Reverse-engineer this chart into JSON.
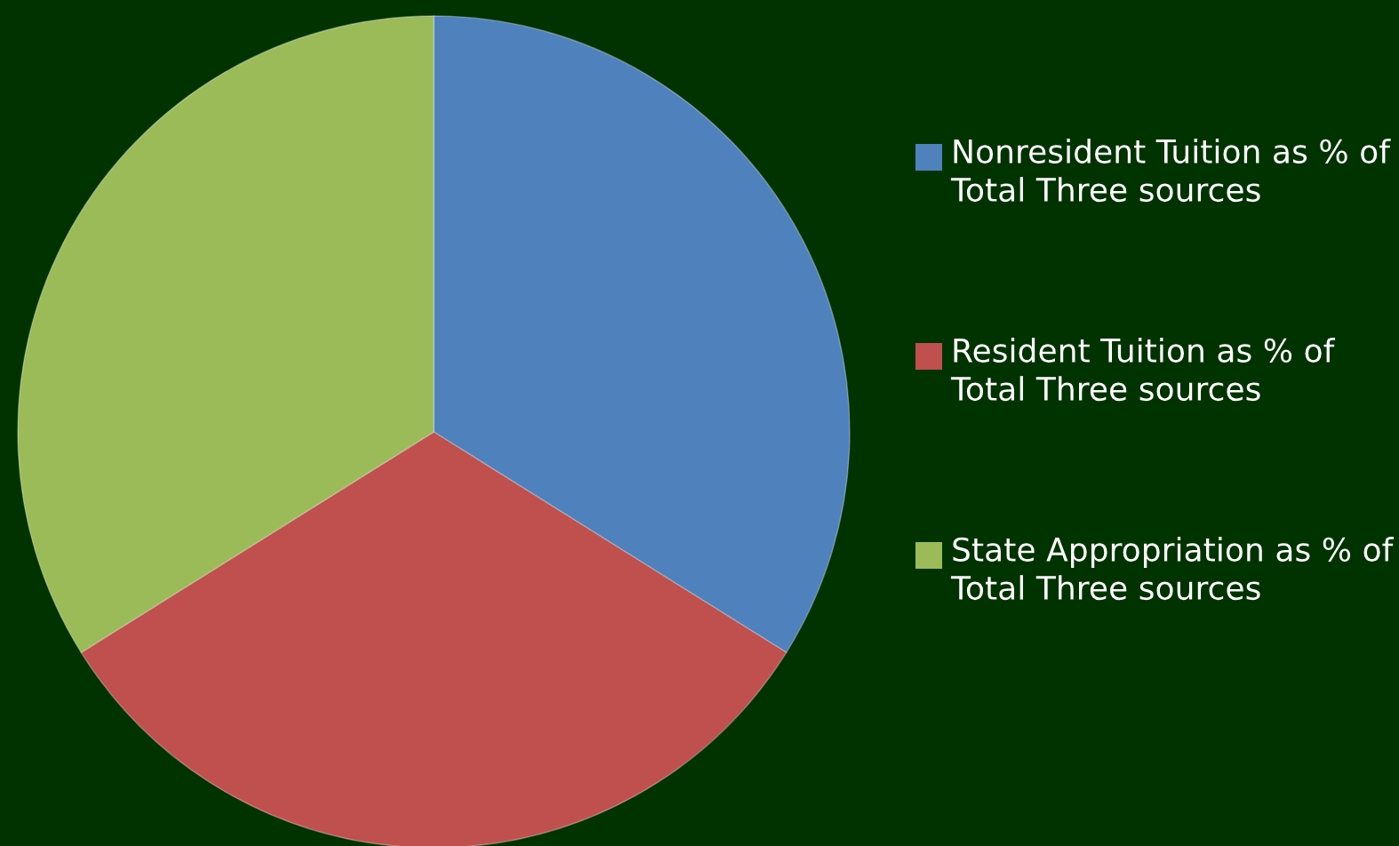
{
  "chart_data": {
    "type": "pie",
    "categories": [
      "Nonresident Tuition as % of Total Three sources",
      "Resident Tuition as % of Total Three sources",
      "State Appropriation as % of Total Three sources"
    ],
    "values": [
      33.9,
      32.2,
      33.9
    ],
    "colors": [
      "#4f81bd",
      "#c0504d",
      "#9bbb59"
    ],
    "legend": "right"
  }
}
